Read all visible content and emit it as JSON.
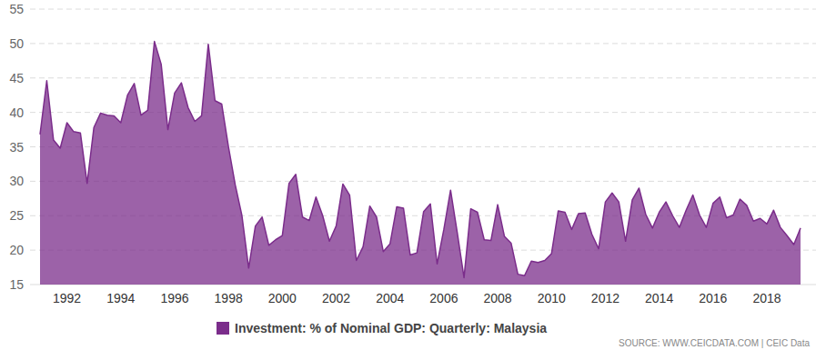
{
  "chart_data": {
    "type": "area",
    "categories": [
      null,
      null,
      null,
      null,
      "1992",
      null,
      null,
      null,
      null,
      null,
      null,
      null,
      "1994",
      null,
      null,
      null,
      null,
      null,
      null,
      null,
      "1996",
      null,
      null,
      null,
      null,
      null,
      null,
      null,
      "1998",
      null,
      null,
      null,
      null,
      null,
      null,
      null,
      "2000",
      null,
      null,
      null,
      null,
      null,
      null,
      null,
      "2002",
      null,
      null,
      null,
      null,
      null,
      null,
      null,
      "2004",
      null,
      null,
      null,
      null,
      null,
      null,
      null,
      "2006",
      null,
      null,
      null,
      null,
      null,
      null,
      null,
      "2008",
      null,
      null,
      null,
      null,
      null,
      null,
      null,
      "2010",
      null,
      null,
      null,
      null,
      null,
      null,
      null,
      "2012",
      null,
      null,
      null,
      null,
      null,
      null,
      null,
      "2014",
      null,
      null,
      null,
      null,
      null,
      null,
      null,
      "2016",
      null,
      null,
      null,
      null,
      null,
      null,
      null,
      "2018",
      null,
      null,
      null,
      null,
      null
    ],
    "series": [
      {
        "name": "Investment: % of Nominal GDP: Quarterly: Malaysia",
        "color": "#7b2d8b",
        "values": [
          36.8,
          44.6,
          36,
          34.8,
          38.5,
          37.2,
          37,
          29.7,
          37.8,
          39.9,
          39.6,
          39.5,
          38.5,
          42.5,
          44.2,
          39.6,
          40.3,
          50.3,
          47,
          37.5,
          42.8,
          44.3,
          40.7,
          38.7,
          39.5,
          49.9,
          41.7,
          41.2,
          35,
          29.5,
          25,
          17.4,
          23.5,
          24.8,
          20.7,
          21.5,
          22.1,
          29.7,
          31,
          24.8,
          24.3,
          27.7,
          25,
          21.3,
          23.5,
          29.6,
          28,
          18.5,
          20.5,
          26.4,
          24.8,
          19.8,
          20.9,
          26.3,
          26.1,
          19.3,
          19.6,
          25.6,
          26.7,
          18,
          23,
          28.7,
          22.5,
          16,
          26,
          25.5,
          21.5,
          21.4,
          26.6,
          22,
          21,
          16.5,
          16.3,
          18.4,
          18.2,
          18.5,
          19.5,
          25.7,
          25.5,
          23,
          25.3,
          25.4,
          22.3,
          20.2,
          27,
          28.3,
          27,
          21.3,
          27.3,
          29,
          25.2,
          23.2,
          25.5,
          27,
          25,
          23.3,
          25.8,
          28,
          25.1,
          23.3,
          26.8,
          27.7,
          24.7,
          25.1,
          27.4,
          26.5,
          24.2,
          24.6,
          23.8,
          25.8,
          23.3,
          22.1,
          20.8,
          23.2
        ]
      }
    ],
    "ylim": [
      15,
      55
    ],
    "yticks": [
      15,
      20,
      25,
      30,
      35,
      40,
      45,
      50,
      55
    ],
    "grid": true,
    "legend": "bottom",
    "annotations": [
      "SOURCE: WWW.CEICDATA.COM | CEIC Data"
    ]
  }
}
